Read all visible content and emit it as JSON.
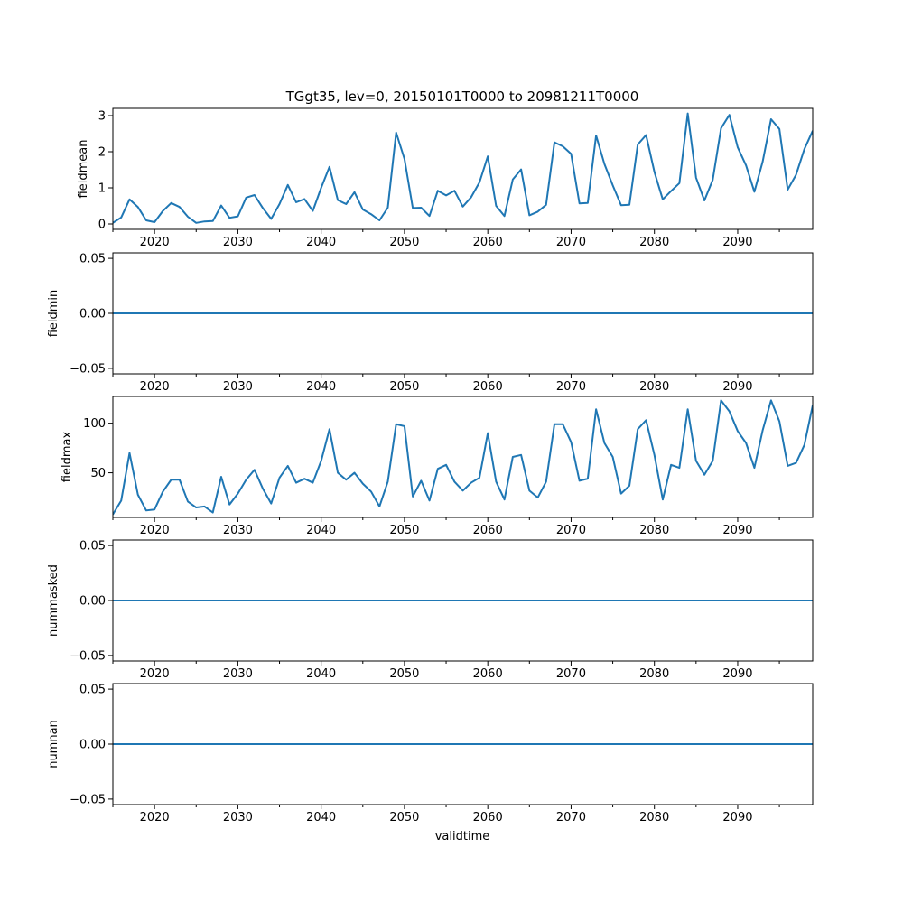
{
  "chart_data": {
    "type": "line",
    "title": "TGgt35, lev=0, 20150101T0000 to 20981211T0000",
    "xlabel": "validtime",
    "line_color": "#1f77b4",
    "xlim": [
      2015,
      2099
    ],
    "x_ticks": [
      2020,
      2030,
      2040,
      2050,
      2060,
      2070,
      2080,
      2090
    ],
    "x_tick_labels": [
      "2020",
      "2030",
      "2040",
      "2050",
      "2060",
      "2070",
      "2080",
      "2090"
    ],
    "x_minor_ticks": [
      2015,
      2025,
      2035,
      2045,
      2055,
      2065,
      2075,
      2085,
      2095
    ],
    "x": [
      2015,
      2016,
      2017,
      2018,
      2019,
      2020,
      2021,
      2022,
      2023,
      2024,
      2025,
      2026,
      2027,
      2028,
      2029,
      2030,
      2031,
      2032,
      2033,
      2034,
      2035,
      2036,
      2037,
      2038,
      2039,
      2040,
      2041,
      2042,
      2043,
      2044,
      2045,
      2046,
      2047,
      2048,
      2049,
      2050,
      2051,
      2052,
      2053,
      2054,
      2055,
      2056,
      2057,
      2058,
      2059,
      2060,
      2061,
      2062,
      2063,
      2064,
      2065,
      2066,
      2067,
      2068,
      2069,
      2070,
      2071,
      2072,
      2073,
      2074,
      2075,
      2076,
      2077,
      2078,
      2079,
      2080,
      2081,
      2082,
      2083,
      2084,
      2085,
      2086,
      2087,
      2088,
      2089,
      2090,
      2091,
      2092,
      2093,
      2094,
      2095,
      2096,
      2097,
      2098,
      2099
    ],
    "panels": [
      {
        "ylabel": "fieldmean",
        "ylim": [
          -0.15,
          3.2
        ],
        "y_ticks": [
          0,
          1,
          2,
          3
        ],
        "y_tick_labels": [
          "0",
          "1",
          "2",
          "3"
        ],
        "values": [
          0.03,
          0.18,
          0.68,
          0.47,
          0.1,
          0.05,
          0.36,
          0.58,
          0.47,
          0.2,
          0.03,
          0.07,
          0.08,
          0.51,
          0.17,
          0.21,
          0.73,
          0.8,
          0.44,
          0.14,
          0.55,
          1.08,
          0.6,
          0.69,
          0.36,
          1.0,
          1.58,
          0.66,
          0.55,
          0.88,
          0.4,
          0.27,
          0.1,
          0.45,
          2.53,
          1.8,
          0.44,
          0.45,
          0.22,
          0.92,
          0.79,
          0.92,
          0.48,
          0.74,
          1.15,
          1.87,
          0.5,
          0.22,
          1.23,
          1.51,
          0.24,
          0.34,
          0.53,
          2.26,
          2.15,
          1.94,
          0.57,
          0.58,
          2.45,
          1.66,
          1.07,
          0.52,
          0.53,
          2.2,
          2.46,
          1.44,
          0.68,
          0.91,
          1.13,
          3.06,
          1.28,
          0.65,
          1.22,
          2.65,
          3.02,
          2.12,
          1.62,
          0.89,
          1.73,
          2.9,
          2.63,
          0.95,
          1.36,
          2.07,
          2.58
        ]
      },
      {
        "ylabel": "fieldmin",
        "ylim": [
          -0.055,
          0.055
        ],
        "y_ticks": [
          -0.05,
          0,
          0.05
        ],
        "y_tick_labels": [
          "−0.05",
          "0.00",
          "0.05"
        ],
        "constant": 0
      },
      {
        "ylabel": "fieldmax",
        "ylim": [
          5,
          127
        ],
        "y_ticks": [
          50,
          100
        ],
        "y_tick_labels": [
          "50",
          "100"
        ],
        "values": [
          8,
          22,
          70,
          28,
          12,
          13,
          31,
          43,
          43,
          21,
          15,
          16,
          10,
          46,
          18,
          29,
          43,
          53,
          34,
          19,
          45,
          57,
          40,
          44,
          40,
          62,
          94,
          50,
          43,
          50,
          39,
          31,
          16,
          41,
          99,
          97,
          26,
          42,
          22,
          54,
          58,
          41,
          32,
          40,
          45,
          90,
          41,
          23,
          66,
          68,
          32,
          25,
          41,
          99,
          99,
          81,
          42,
          44,
          114,
          80,
          66,
          29,
          37,
          94,
          103,
          68,
          23,
          58,
          55,
          114,
          62,
          48,
          62,
          123,
          112,
          92,
          80,
          55,
          93,
          123,
          102,
          57,
          60,
          78,
          118
        ]
      },
      {
        "ylabel": "nummasked",
        "ylim": [
          -0.055,
          0.055
        ],
        "y_ticks": [
          -0.05,
          0,
          0.05
        ],
        "y_tick_labels": [
          "−0.05",
          "0.00",
          "0.05"
        ],
        "constant": 0
      },
      {
        "ylabel": "numnan",
        "ylim": [
          -0.055,
          0.055
        ],
        "y_ticks": [
          -0.05,
          0,
          0.05
        ],
        "y_tick_labels": [
          "−0.05",
          "0.00",
          "0.05"
        ],
        "constant": 0
      }
    ]
  }
}
